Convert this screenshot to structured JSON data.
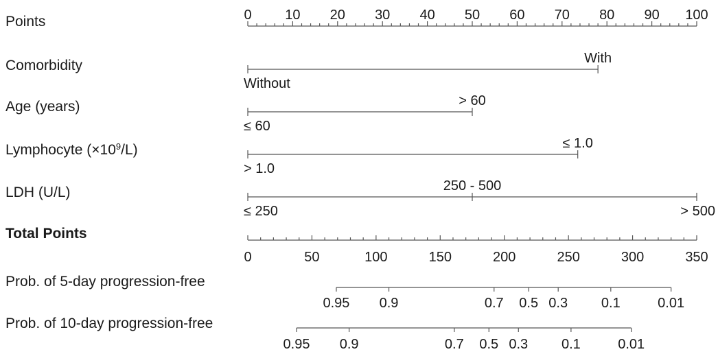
{
  "chart_data": {
    "type": "nomogram",
    "rows": [
      {
        "id": "points",
        "label": "Points",
        "axis": {
          "min": 0,
          "max": 100,
          "major": [
            0,
            10,
            20,
            30,
            40,
            50,
            60,
            70,
            80,
            90,
            100
          ],
          "minor_step": 2
        }
      },
      {
        "id": "comorbidity",
        "label": "Comorbidity",
        "levels": [
          {
            "text": "Without",
            "points": 0
          },
          {
            "text": "With",
            "points": 78
          }
        ]
      },
      {
        "id": "age",
        "label": "Age (years)",
        "levels": [
          {
            "text": "≤ 60",
            "points": 0
          },
          {
            "text": "> 60",
            "points": 50
          }
        ]
      },
      {
        "id": "lymphocyte",
        "label_parts": {
          "pre": "Lymphocyte (×10",
          "sup": "9",
          "post": "/L)"
        },
        "levels": [
          {
            "text": "> 1.0",
            "points": 0
          },
          {
            "text": "≤ 1.0",
            "points": 73.5
          }
        ]
      },
      {
        "id": "ldh",
        "label": "LDH (U/L)",
        "levels": [
          {
            "text": "≤ 250",
            "points": 0
          },
          {
            "text": "250 - 500",
            "points": 50
          },
          {
            "text": "> 500",
            "points": 100
          }
        ]
      },
      {
        "id": "total_points",
        "label": "Total Points",
        "axis": {
          "min": 0,
          "max": 350,
          "major": [
            0,
            50,
            100,
            150,
            200,
            250,
            300,
            350
          ],
          "minor_step": 10
        }
      },
      {
        "id": "prob5",
        "label": "Prob. of 5-day progression-free",
        "range_total_points": [
          69,
          330
        ],
        "ticks": [
          {
            "text": "0.95",
            "total_points": 69
          },
          {
            "text": "0.9",
            "total_points": 110
          },
          {
            "text": "0.7",
            "total_points": 192
          },
          {
            "text": "0.5",
            "total_points": 219
          },
          {
            "text": "0.3",
            "total_points": 242
          },
          {
            "text": "0.1",
            "total_points": 283
          },
          {
            "text": "0.01",
            "total_points": 330
          }
        ]
      },
      {
        "id": "prob10",
        "label": "Prob. of 10-day progression-free",
        "range_total_points": [
          38,
          299
        ],
        "ticks": [
          {
            "text": "0.95",
            "total_points": 38
          },
          {
            "text": "0.9",
            "total_points": 79
          },
          {
            "text": "0.7",
            "total_points": 161
          },
          {
            "text": "0.5",
            "total_points": 188
          },
          {
            "text": "0.3",
            "total_points": 211
          },
          {
            "text": "0.1",
            "total_points": 252
          },
          {
            "text": "0.01",
            "total_points": 299
          }
        ]
      }
    ]
  }
}
